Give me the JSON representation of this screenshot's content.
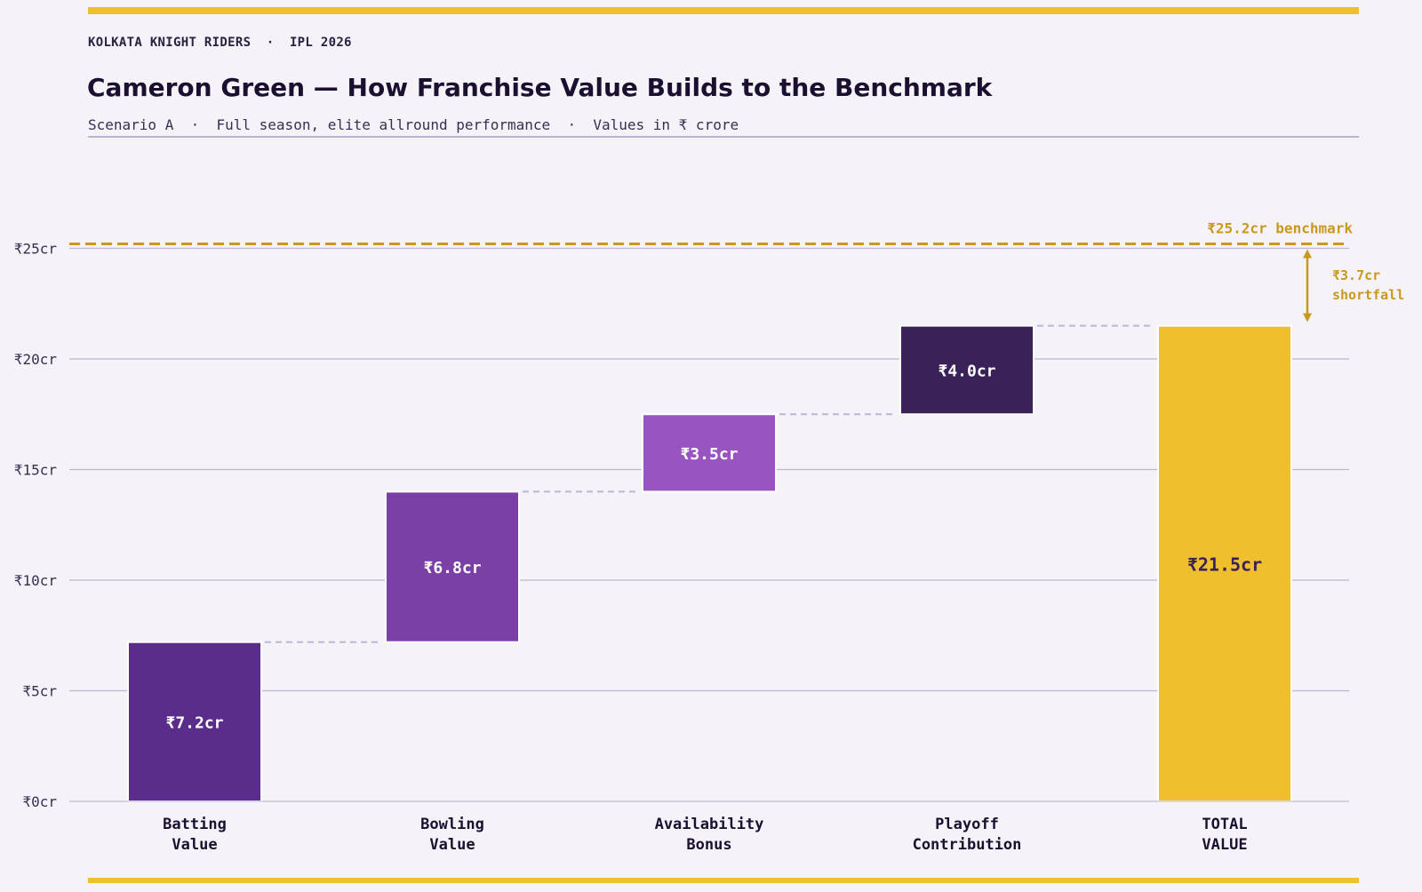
{
  "header": {
    "eyebrow": "KOLKATA KNIGHT RIDERS  ·  IPL 2026",
    "title": "Cameron Green — How Franchise Value Builds to the Benchmark",
    "subtitle": "Scenario A  ·  Full season, elite allround performance  ·  Values in ₹ crore"
  },
  "colors": {
    "accent": "#f0bf2e",
    "benchmark": "#c9991e",
    "grid": "#bcb6d8",
    "connector": "#bcb6d8"
  },
  "chart_data": {
    "type": "bar",
    "subtype": "waterfall",
    "categories": [
      [
        "Batting",
        "Value"
      ],
      [
        "Bowling",
        "Value"
      ],
      [
        "Availability",
        "Bonus"
      ],
      [
        "Playoff",
        "Contribution"
      ],
      [
        "TOTAL",
        "VALUE"
      ]
    ],
    "steps": [
      {
        "value": 7.2,
        "label": "₹7.2cr",
        "color": "#5b2d8a"
      },
      {
        "value": 6.8,
        "label": "₹6.8cr",
        "color": "#7a40a5"
      },
      {
        "value": 3.5,
        "label": "₹3.5cr",
        "color": "#9955bf"
      },
      {
        "value": 4.0,
        "label": "₹4.0cr",
        "color": "#3a2258"
      }
    ],
    "total": {
      "value": 21.5,
      "label": "₹21.5cr",
      "color": "#f0bf2e"
    },
    "ylim": [
      0,
      25
    ],
    "yticks": [
      {
        "value": 0,
        "label": "₹0cr"
      },
      {
        "value": 5,
        "label": "₹5cr"
      },
      {
        "value": 10,
        "label": "₹10cr"
      },
      {
        "value": 15,
        "label": "₹15cr"
      },
      {
        "value": 20,
        "label": "₹20cr"
      },
      {
        "value": 25,
        "label": "₹25cr"
      }
    ],
    "grid": true,
    "benchmark": {
      "value": 25.2,
      "label": "₹25.2cr benchmark"
    },
    "shortfall": {
      "value": 3.7,
      "label_lines": [
        "₹3.7cr",
        "shortfall"
      ]
    }
  }
}
